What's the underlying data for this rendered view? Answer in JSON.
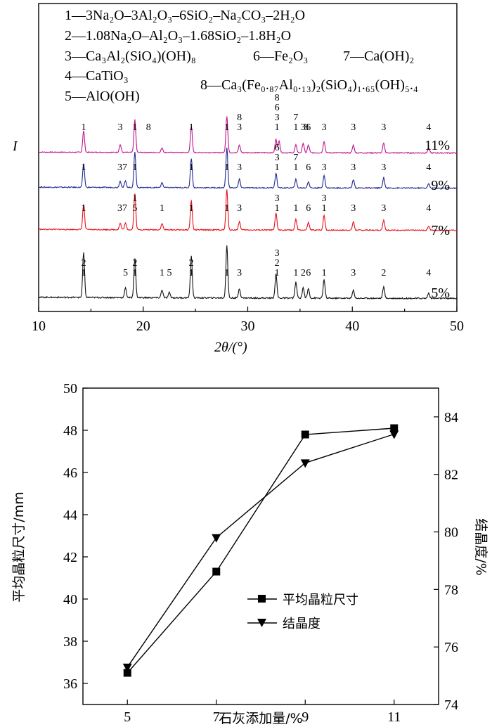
{
  "chart_data": [
    {
      "type": "line",
      "xlabel": "2θ/(°)",
      "ylabel": "I",
      "xlim": [
        10,
        50
      ],
      "xticks": [
        "10",
        "20",
        "30",
        "40",
        "50"
      ],
      "legend_lines": [
        "1—3Na₂O–3Al₂O₃–6SiO₂–Na₂CO₃–2H₂O",
        "2—1.08Na₂O–Al₂O₃–1.68SiO₂–1.8H₂O",
        "3—Ca₃Al₂(SiO₄)(OH)₈",
        "4—CaTiO₃",
        "5—AlO(OH)",
        "6—Fe₂O₃",
        "7—Ca(OH)₂",
        "8—Ca₃(Fe₀.₈₇Al₀.₁₃)₂(SiO₄)₁.₆₅(OH)₅.₄"
      ],
      "series": [
        {
          "name": "11%",
          "color": "#c0138f",
          "peaks": [
            [
              14.3,
              0.55
            ],
            [
              17.8,
              0.2
            ],
            [
              19.2,
              0.85
            ],
            [
              21.8,
              0.12
            ],
            [
              24.6,
              0.7
            ],
            [
              28.0,
              0.95
            ],
            [
              29.2,
              0.2
            ],
            [
              32.7,
              0.35
            ],
            [
              33.0,
              0.3
            ],
            [
              34.6,
              0.2
            ],
            [
              35.3,
              0.25
            ],
            [
              35.8,
              0.2
            ],
            [
              37.3,
              0.3
            ],
            [
              40.1,
              0.2
            ],
            [
              43.0,
              0.25
            ],
            [
              47.3,
              0.12
            ]
          ],
          "labels": [
            [
              14.3,
              "1"
            ],
            [
              17.8,
              "3"
            ],
            [
              19.2,
              "1"
            ],
            [
              20.5,
              "8"
            ],
            [
              24.6,
              "1"
            ],
            [
              28.0,
              "1"
            ],
            [
              29.2,
              "8"
            ],
            [
              29.2,
              "3"
            ],
            [
              32.8,
              "8"
            ],
            [
              32.8,
              "6"
            ],
            [
              32.8,
              "3"
            ],
            [
              32.8,
              "1"
            ],
            [
              34.6,
              "7"
            ],
            [
              35.3,
              "3"
            ],
            [
              34.6,
              "1"
            ],
            [
              35.6,
              "8"
            ],
            [
              35.8,
              "6"
            ],
            [
              37.3,
              "3"
            ],
            [
              40.1,
              "3"
            ],
            [
              43.0,
              "3"
            ],
            [
              47.3,
              "4"
            ]
          ]
        },
        {
          "name": "9%",
          "color": "#1f2a8f",
          "peaks": [
            [
              14.3,
              0.55
            ],
            [
              17.8,
              0.15
            ],
            [
              18.3,
              0.15
            ],
            [
              19.2,
              0.85
            ],
            [
              21.8,
              0.12
            ],
            [
              24.6,
              0.7
            ],
            [
              28.0,
              0.95
            ],
            [
              29.2,
              0.2
            ],
            [
              32.7,
              0.35
            ],
            [
              34.6,
              0.2
            ],
            [
              35.8,
              0.15
            ],
            [
              37.3,
              0.3
            ],
            [
              40.1,
              0.2
            ],
            [
              43.0,
              0.25
            ],
            [
              47.3,
              0.1
            ]
          ],
          "labels": [
            [
              14.3,
              "1"
            ],
            [
              18.0,
              "37"
            ],
            [
              19.2,
              "1"
            ],
            [
              24.6,
              "1"
            ],
            [
              28.0,
              "1"
            ],
            [
              29.2,
              "3"
            ],
            [
              32.8,
              "6"
            ],
            [
              32.8,
              "3"
            ],
            [
              32.8,
              "1"
            ],
            [
              34.6,
              "7"
            ],
            [
              34.6,
              "1"
            ],
            [
              35.8,
              "6"
            ],
            [
              37.3,
              "3"
            ],
            [
              40.1,
              "3"
            ],
            [
              43.0,
              "3"
            ],
            [
              47.3,
              "4"
            ]
          ]
        },
        {
          "name": "7%",
          "color": "#e8101a",
          "peaks": [
            [
              14.3,
              0.6
            ],
            [
              17.8,
              0.15
            ],
            [
              18.3,
              0.15
            ],
            [
              19.2,
              0.85
            ],
            [
              21.8,
              0.15
            ],
            [
              24.6,
              0.7
            ],
            [
              28.0,
              0.95
            ],
            [
              29.2,
              0.2
            ],
            [
              32.7,
              0.4
            ],
            [
              34.6,
              0.25
            ],
            [
              35.8,
              0.18
            ],
            [
              37.3,
              0.35
            ],
            [
              40.1,
              0.2
            ],
            [
              43.0,
              0.25
            ],
            [
              47.3,
              0.1
            ]
          ],
          "labels": [
            [
              14.3,
              "1"
            ],
            [
              18.0,
              "37"
            ],
            [
              19.2,
              "1"
            ],
            [
              19.2,
              "5"
            ],
            [
              21.8,
              "1"
            ],
            [
              24.6,
              "1"
            ],
            [
              28.0,
              "1"
            ],
            [
              29.2,
              "3"
            ],
            [
              32.8,
              "3"
            ],
            [
              32.8,
              "1"
            ],
            [
              34.6,
              "1"
            ],
            [
              35.8,
              "6"
            ],
            [
              37.3,
              "3"
            ],
            [
              37.3,
              "1"
            ],
            [
              40.1,
              "3"
            ],
            [
              43.0,
              "3"
            ],
            [
              47.3,
              "4"
            ]
          ]
        },
        {
          "name": "5%",
          "color": "#111111",
          "peaks": [
            [
              14.3,
              0.85
            ],
            [
              18.3,
              0.18
            ],
            [
              19.2,
              0.75
            ],
            [
              21.8,
              0.15
            ],
            [
              22.5,
              0.1
            ],
            [
              24.6,
              0.8
            ],
            [
              28.0,
              1.0
            ],
            [
              29.2,
              0.18
            ],
            [
              32.7,
              0.45
            ],
            [
              34.6,
              0.3
            ],
            [
              35.3,
              0.2
            ],
            [
              35.8,
              0.18
            ],
            [
              37.3,
              0.35
            ],
            [
              40.1,
              0.15
            ],
            [
              43.0,
              0.22
            ],
            [
              47.3,
              0.1
            ]
          ],
          "labels": [
            [
              14.3,
              "2"
            ],
            [
              14.3,
              "1"
            ],
            [
              18.3,
              "5"
            ],
            [
              19.2,
              "2"
            ],
            [
              19.2,
              "1"
            ],
            [
              21.8,
              "1"
            ],
            [
              22.5,
              "5"
            ],
            [
              24.6,
              "2"
            ],
            [
              24.6,
              "1"
            ],
            [
              28.0,
              "1"
            ],
            [
              29.2,
              "3"
            ],
            [
              32.8,
              "3"
            ],
            [
              32.8,
              "2"
            ],
            [
              32.8,
              "1"
            ],
            [
              34.6,
              "1"
            ],
            [
              35.3,
              "2"
            ],
            [
              35.8,
              "6"
            ],
            [
              37.3,
              "1"
            ],
            [
              40.1,
              "3"
            ],
            [
              43.0,
              "2"
            ],
            [
              47.3,
              "4"
            ]
          ]
        }
      ]
    },
    {
      "type": "line",
      "xlabel": "石灰添加量/%",
      "ylabel_left": "平均晶粒尺寸/mm",
      "ylabel_right": "结晶度/%",
      "categories": [
        "5",
        "7",
        "9",
        "11"
      ],
      "x": [
        5,
        7,
        9,
        11
      ],
      "ylim_left": [
        35,
        50
      ],
      "ylim_right": [
        74,
        85
      ],
      "yticks_left": [
        "36",
        "38",
        "40",
        "42",
        "44",
        "46",
        "48",
        "50"
      ],
      "yticks_right": [
        "74",
        "76",
        "78",
        "80",
        "82",
        "84"
      ],
      "series": [
        {
          "name": "平均晶粒尺寸",
          "axis": "left",
          "marker": "square",
          "values": [
            36.5,
            41.3,
            47.8,
            48.1
          ]
        },
        {
          "name": "结晶度",
          "axis": "right",
          "marker": "triangle-down",
          "values": [
            75.3,
            79.8,
            82.4,
            83.4
          ]
        }
      ],
      "legend_position": "bottom-right"
    }
  ]
}
